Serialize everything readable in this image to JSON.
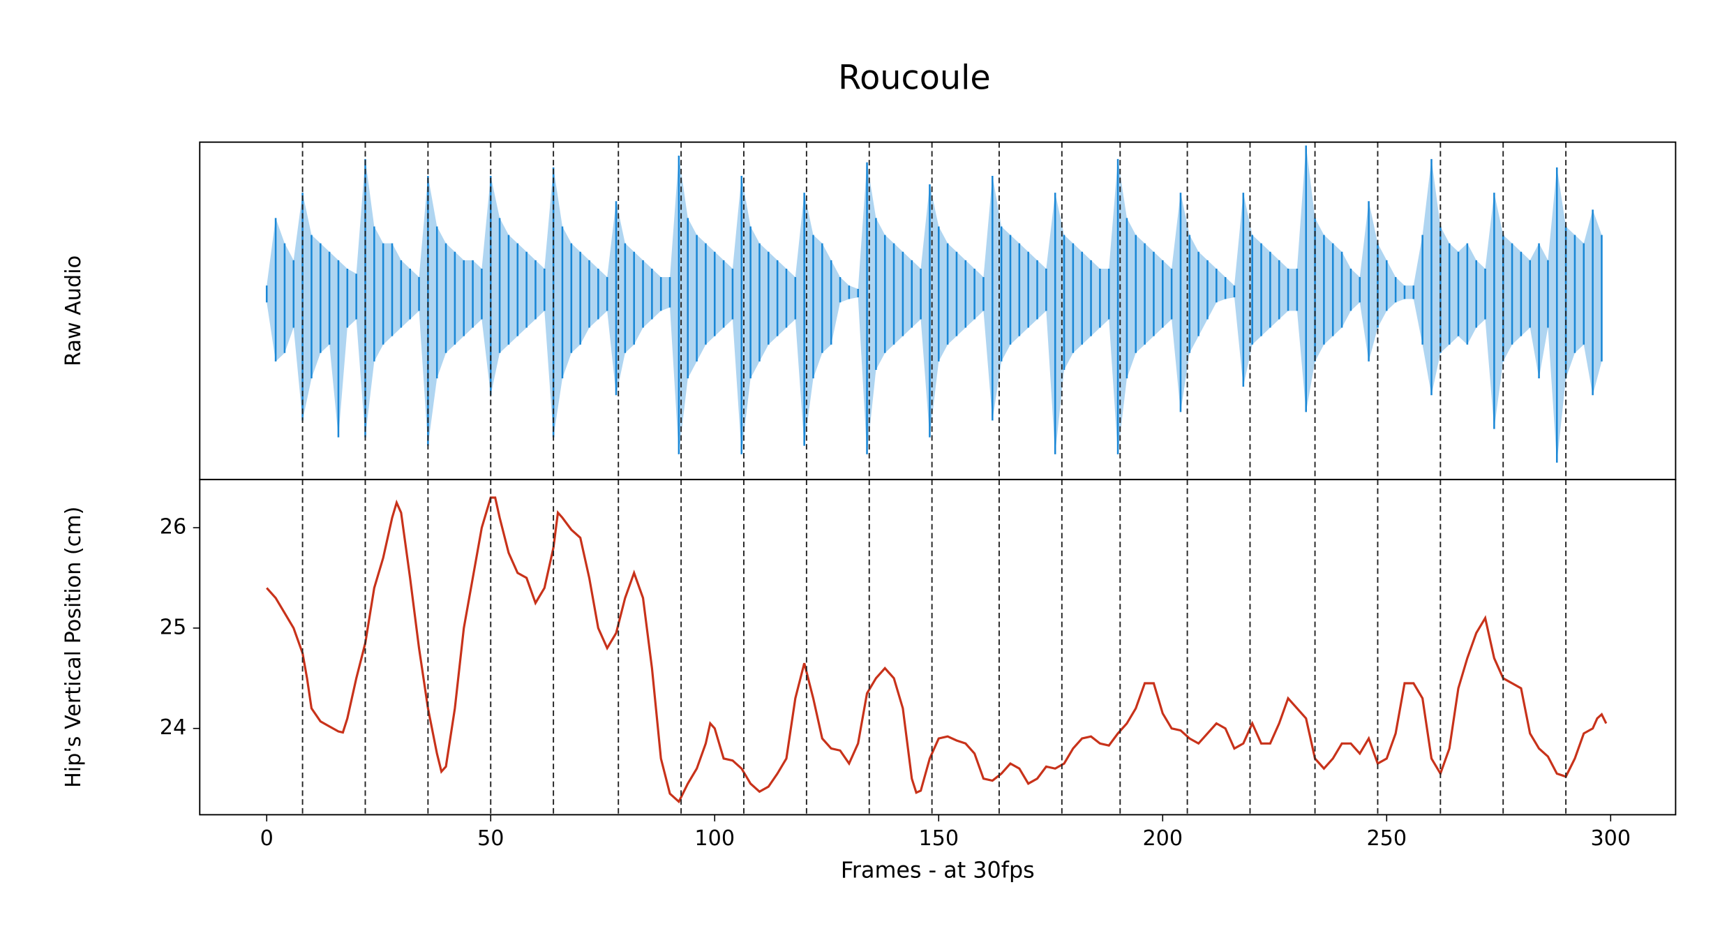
{
  "title": "Roucoule",
  "beats": [
    8,
    22,
    36,
    50,
    64,
    78.5,
    92.5,
    106.5,
    120.5,
    134.5,
    148.5,
    163.5,
    177.5,
    190.5,
    205.5,
    219.5,
    234,
    248,
    262,
    276,
    290
  ],
  "chart_data": [
    {
      "type": "waveform",
      "ylabel": "Raw Audio",
      "color": "#1a87d6",
      "xlim": [
        -14.95,
        314.5
      ],
      "ylim": [
        -1.1,
        0.9
      ],
      "x": [
        0,
        2,
        4,
        6,
        8,
        10,
        12,
        14,
        16,
        18,
        20,
        22,
        24,
        26,
        28,
        30,
        32,
        34,
        36,
        38,
        40,
        42,
        44,
        46,
        48,
        50,
        52,
        54,
        56,
        58,
        60,
        62,
        64,
        66,
        68,
        70,
        72,
        74,
        76,
        78,
        80,
        82,
        84,
        86,
        88,
        90,
        92,
        94,
        96,
        98,
        100,
        102,
        104,
        106,
        108,
        110,
        112,
        114,
        116,
        118,
        120,
        122,
        124,
        126,
        128,
        130,
        132,
        134,
        136,
        138,
        140,
        142,
        144,
        146,
        148,
        150,
        152,
        154,
        156,
        158,
        160,
        162,
        164,
        166,
        168,
        170,
        172,
        174,
        176,
        178,
        180,
        182,
        184,
        186,
        188,
        190,
        192,
        194,
        196,
        198,
        200,
        202,
        204,
        206,
        208,
        210,
        212,
        214,
        216,
        218,
        220,
        222,
        224,
        226,
        228,
        230,
        232,
        234,
        236,
        238,
        240,
        242,
        244,
        246,
        248,
        250,
        252,
        254,
        256,
        258,
        260,
        262,
        264,
        266,
        268,
        270,
        272,
        274,
        276,
        278,
        280,
        282,
        284,
        286,
        288,
        290,
        292,
        294,
        296,
        298
      ],
      "upper": [
        0.05,
        0.45,
        0.3,
        0.2,
        0.6,
        0.35,
        0.3,
        0.25,
        0.2,
        0.15,
        0.12,
        0.8,
        0.4,
        0.3,
        0.3,
        0.2,
        0.15,
        0.1,
        0.7,
        0.4,
        0.3,
        0.25,
        0.2,
        0.2,
        0.15,
        0.7,
        0.45,
        0.35,
        0.3,
        0.25,
        0.2,
        0.15,
        0.75,
        0.4,
        0.3,
        0.25,
        0.2,
        0.15,
        0.1,
        0.55,
        0.3,
        0.25,
        0.2,
        0.15,
        0.1,
        0.1,
        0.82,
        0.45,
        0.35,
        0.3,
        0.25,
        0.2,
        0.15,
        0.7,
        0.4,
        0.3,
        0.25,
        0.2,
        0.15,
        0.1,
        0.6,
        0.35,
        0.3,
        0.2,
        0.1,
        0.05,
        0.03,
        0.78,
        0.45,
        0.35,
        0.3,
        0.25,
        0.2,
        0.15,
        0.65,
        0.4,
        0.3,
        0.25,
        0.2,
        0.15,
        0.1,
        0.7,
        0.4,
        0.35,
        0.3,
        0.25,
        0.2,
        0.15,
        0.6,
        0.35,
        0.3,
        0.25,
        0.2,
        0.15,
        0.15,
        0.8,
        0.45,
        0.35,
        0.3,
        0.25,
        0.2,
        0.15,
        0.6,
        0.35,
        0.25,
        0.2,
        0.15,
        0.1,
        0.05,
        0.6,
        0.35,
        0.3,
        0.25,
        0.2,
        0.15,
        0.15,
        0.88,
        0.45,
        0.35,
        0.3,
        0.25,
        0.15,
        0.1,
        0.55,
        0.3,
        0.2,
        0.1,
        0.05,
        0.05,
        0.35,
        0.8,
        0.4,
        0.3,
        0.25,
        0.3,
        0.2,
        0.15,
        0.6,
        0.35,
        0.3,
        0.25,
        0.2,
        0.3,
        0.2,
        0.75,
        0.4,
        0.35,
        0.3,
        0.5,
        0.35
      ],
      "lower": [
        -0.05,
        -0.4,
        -0.35,
        -0.2,
        -0.75,
        -0.5,
        -0.35,
        -0.3,
        -0.85,
        -0.2,
        -0.15,
        -0.85,
        -0.4,
        -0.3,
        -0.25,
        -0.2,
        -0.15,
        -0.1,
        -0.9,
        -0.5,
        -0.35,
        -0.3,
        -0.25,
        -0.2,
        -0.15,
        -0.6,
        -0.35,
        -0.3,
        -0.25,
        -0.2,
        -0.15,
        -0.1,
        -0.85,
        -0.5,
        -0.35,
        -0.3,
        -0.2,
        -0.15,
        -0.1,
        -0.6,
        -0.35,
        -0.3,
        -0.2,
        -0.15,
        -0.1,
        -0.08,
        -0.95,
        -0.5,
        -0.4,
        -0.3,
        -0.25,
        -0.2,
        -0.15,
        -0.95,
        -0.5,
        -0.4,
        -0.3,
        -0.25,
        -0.2,
        -0.15,
        -0.9,
        -0.5,
        -0.35,
        -0.3,
        -0.05,
        -0.03,
        -0.02,
        -0.95,
        -0.45,
        -0.35,
        -0.3,
        -0.25,
        -0.2,
        -0.15,
        -0.85,
        -0.4,
        -0.3,
        -0.25,
        -0.2,
        -0.15,
        -0.1,
        -0.75,
        -0.4,
        -0.3,
        -0.25,
        -0.2,
        -0.15,
        -0.1,
        -0.95,
        -0.45,
        -0.35,
        -0.3,
        -0.25,
        -0.2,
        -0.15,
        -0.95,
        -0.5,
        -0.35,
        -0.3,
        -0.25,
        -0.2,
        -0.15,
        -0.7,
        -0.35,
        -0.25,
        -0.15,
        -0.05,
        -0.03,
        -0.02,
        -0.55,
        -0.3,
        -0.25,
        -0.2,
        -0.15,
        -0.1,
        -0.1,
        -0.7,
        -0.4,
        -0.3,
        -0.25,
        -0.2,
        -0.1,
        -0.05,
        -0.4,
        -0.2,
        -0.1,
        -0.05,
        -0.03,
        -0.03,
        -0.3,
        -0.6,
        -0.35,
        -0.3,
        -0.25,
        -0.3,
        -0.2,
        -0.15,
        -0.8,
        -0.4,
        -0.3,
        -0.25,
        -0.2,
        -0.5,
        -0.2,
        -1.0,
        -0.5,
        -0.35,
        -0.3,
        -0.6,
        -0.4
      ]
    },
    {
      "type": "line",
      "ylabel": "Hip's Vertical Position (cm)",
      "xlabel": "Frames - at 30fps",
      "color": "#c8321a",
      "xlim": [
        -14.95,
        314.5
      ],
      "ylim": [
        23.14,
        26.48
      ],
      "xticks": [
        0,
        50,
        100,
        150,
        200,
        250,
        300
      ],
      "yticks": [
        24,
        25,
        26
      ],
      "x": [
        0,
        2,
        4,
        6,
        8,
        9,
        10,
        12,
        14,
        16,
        17,
        18,
        20,
        22,
        24,
        26,
        28,
        29,
        30,
        32,
        34,
        36,
        38,
        39,
        40,
        42,
        44,
        46,
        48,
        50,
        51,
        52,
        54,
        56,
        58,
        60,
        62,
        64,
        65,
        66,
        68,
        70,
        72,
        74,
        76,
        78,
        80,
        82,
        84,
        86,
        88,
        90,
        92,
        94,
        96,
        98,
        99,
        100,
        102,
        104,
        106,
        108,
        110,
        112,
        114,
        116,
        118,
        120,
        122,
        124,
        126,
        128,
        130,
        132,
        134,
        136,
        138,
        140,
        142,
        144,
        145,
        146,
        148,
        150,
        152,
        154,
        156,
        158,
        160,
        162,
        164,
        166,
        168,
        170,
        172,
        174,
        176,
        178,
        180,
        182,
        184,
        186,
        188,
        190,
        192,
        194,
        196,
        198,
        200,
        202,
        204,
        206,
        208,
        210,
        212,
        214,
        216,
        218,
        220,
        222,
        224,
        226,
        228,
        230,
        232,
        234,
        236,
        238,
        240,
        242,
        244,
        246,
        248,
        250,
        252,
        254,
        256,
        258,
        260,
        262,
        264,
        266,
        268,
        270,
        272,
        274,
        276,
        278,
        280,
        282,
        284,
        286,
        288,
        290,
        292,
        294,
        296,
        297,
        298,
        299
      ],
      "values": [
        25.4,
        25.3,
        25.15,
        25.0,
        24.75,
        24.5,
        24.2,
        24.07,
        24.02,
        23.97,
        23.96,
        24.1,
        24.5,
        24.85,
        25.4,
        25.7,
        26.1,
        26.25,
        26.15,
        25.5,
        24.8,
        24.2,
        23.75,
        23.57,
        23.62,
        24.2,
        25.0,
        25.5,
        26.0,
        26.3,
        26.3,
        26.1,
        25.75,
        25.55,
        25.5,
        25.25,
        25.4,
        25.8,
        26.15,
        26.1,
        25.98,
        25.9,
        25.5,
        25.0,
        24.8,
        24.95,
        25.3,
        25.55,
        25.3,
        24.6,
        23.7,
        23.35,
        23.27,
        23.45,
        23.6,
        23.85,
        24.05,
        24.0,
        23.7,
        23.68,
        23.6,
        23.45,
        23.37,
        23.42,
        23.55,
        23.7,
        24.3,
        24.65,
        24.3,
        23.9,
        23.8,
        23.78,
        23.65,
        23.85,
        24.35,
        24.5,
        24.6,
        24.5,
        24.2,
        23.5,
        23.36,
        23.38,
        23.7,
        23.9,
        23.92,
        23.88,
        23.85,
        23.75,
        23.5,
        23.48,
        23.55,
        23.65,
        23.6,
        23.45,
        23.5,
        23.62,
        23.6,
        23.65,
        23.8,
        23.9,
        23.92,
        23.85,
        23.83,
        23.95,
        24.05,
        24.2,
        24.45,
        24.45,
        24.15,
        24.0,
        23.98,
        23.9,
        23.85,
        23.95,
        24.05,
        24.0,
        23.8,
        23.85,
        24.05,
        23.85,
        23.85,
        24.05,
        24.3,
        24.2,
        24.1,
        23.7,
        23.6,
        23.7,
        23.85,
        23.85,
        23.75,
        23.9,
        23.65,
        23.7,
        23.95,
        24.45,
        24.45,
        24.3,
        23.7,
        23.55,
        23.8,
        24.4,
        24.7,
        24.95,
        25.1,
        24.7,
        24.5,
        24.45,
        24.4,
        23.95,
        23.8,
        23.72,
        23.55,
        23.52,
        23.7,
        23.95,
        24.0,
        24.1,
        24.14,
        24.05
      ]
    }
  ]
}
